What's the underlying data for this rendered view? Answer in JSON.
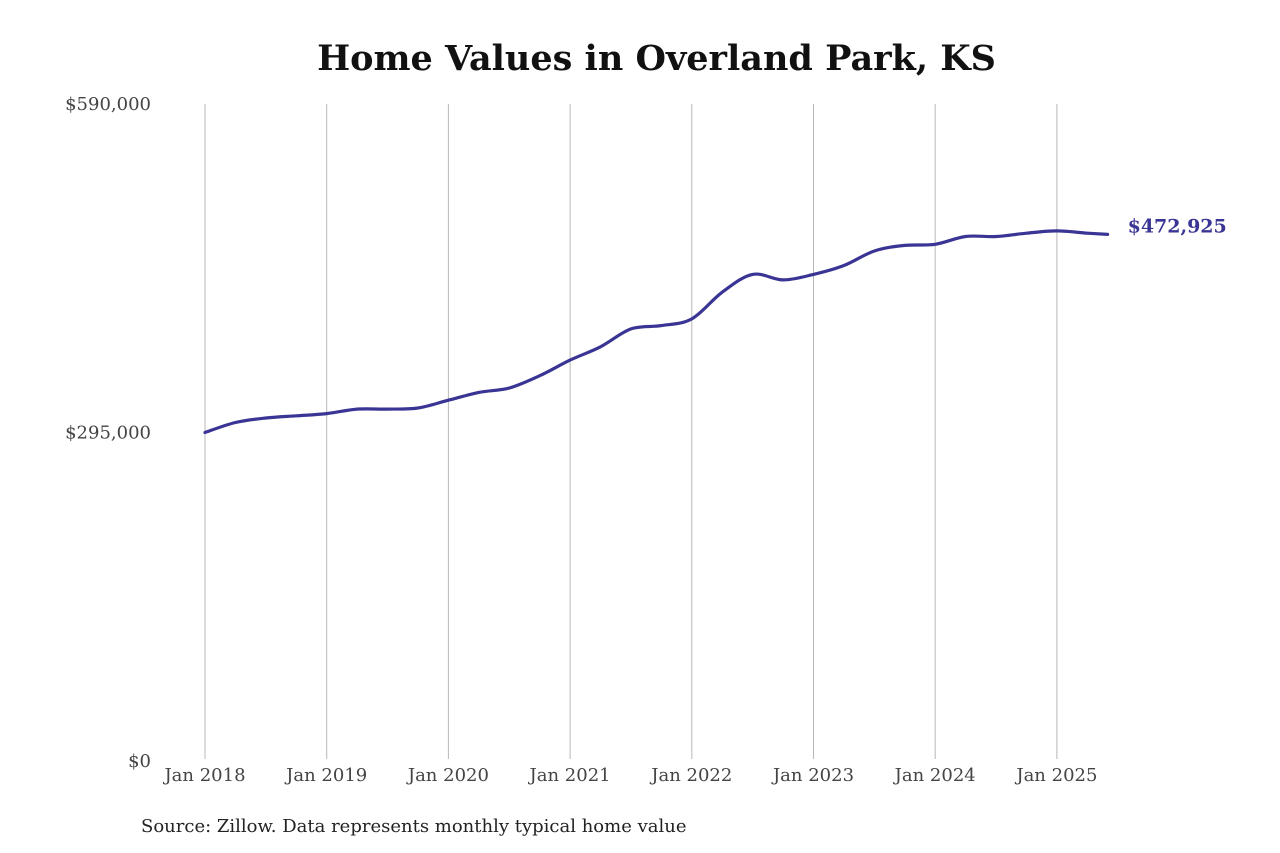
{
  "title": "Home Values in Overland Park, KS",
  "source_note": "Source: Zillow. Data represents monthly typical home value",
  "colors": {
    "line": "#3a3594",
    "grid": "#b8b8b8",
    "text": "#444444"
  },
  "chart_data": {
    "type": "line",
    "title": "Home Values in Overland Park, KS",
    "xlabel": "",
    "ylabel": "",
    "ylim": [
      0,
      590000
    ],
    "xlim": [
      "2018-01",
      "2025-06"
    ],
    "y_ticks": [
      {
        "value": 0,
        "label": "$0"
      },
      {
        "value": 295000,
        "label": "$295,000"
      },
      {
        "value": 590000,
        "label": "$590,000"
      }
    ],
    "x_ticks": [
      {
        "value": "2018-01",
        "label": "Jan 2018"
      },
      {
        "value": "2019-01",
        "label": "Jan 2019"
      },
      {
        "value": "2020-01",
        "label": "Jan 2020"
      },
      {
        "value": "2021-01",
        "label": "Jan 2021"
      },
      {
        "value": "2022-01",
        "label": "Jan 2022"
      },
      {
        "value": "2023-01",
        "label": "Jan 2023"
      },
      {
        "value": "2024-01",
        "label": "Jan 2024"
      },
      {
        "value": "2025-01",
        "label": "Jan 2025"
      }
    ],
    "grid": {
      "vertical": true,
      "horizontal": false
    },
    "end_label": "$472,925",
    "series": [
      {
        "x": [
          "2018-01",
          "2018-04",
          "2018-07",
          "2018-10",
          "2019-01",
          "2019-04",
          "2019-07",
          "2019-10",
          "2020-01",
          "2020-04",
          "2020-07",
          "2020-10",
          "2021-01",
          "2021-04",
          "2021-07",
          "2021-10",
          "2022-01",
          "2022-04",
          "2022-07",
          "2022-10",
          "2023-01",
          "2023-04",
          "2023-07",
          "2023-10",
          "2024-01",
          "2024-04",
          "2024-07",
          "2024-10",
          "2025-01",
          "2025-04",
          "2025-06"
        ],
        "y": [
          295000,
          304000,
          308000,
          310000,
          312000,
          316000,
          316000,
          317000,
          324000,
          331000,
          335000,
          346000,
          360000,
          372000,
          388000,
          391000,
          397000,
          421000,
          437000,
          432000,
          437000,
          445000,
          458000,
          463000,
          464000,
          471000,
          471000,
          474000,
          476000,
          474000,
          472925
        ]
      }
    ]
  }
}
